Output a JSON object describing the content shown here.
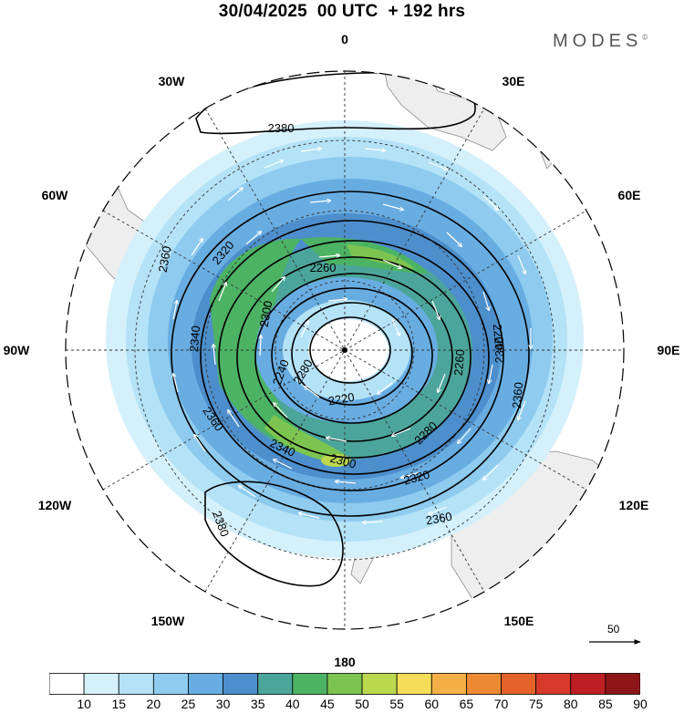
{
  "title": "30/04/2025  00 UTC  + 192 hrs",
  "brand": "MODES",
  "brand_mark": "©",
  "longitude_labels": [
    {
      "text": "0",
      "lon": 0
    },
    {
      "text": "30E",
      "lon": 30
    },
    {
      "text": "60E",
      "lon": 60
    },
    {
      "text": "90E",
      "lon": 90
    },
    {
      "text": "120E",
      "lon": 120
    },
    {
      "text": "150E",
      "lon": 150
    },
    {
      "text": "180",
      "lon": 180
    },
    {
      "text": "150W",
      "lon": -150
    },
    {
      "text": "120W",
      "lon": -120
    },
    {
      "text": "90W",
      "lon": -90
    },
    {
      "text": "60W",
      "lon": -60
    },
    {
      "text": "30W",
      "lon": -30
    }
  ],
  "contour_labels": [
    "2380",
    "2360",
    "2340",
    "2320",
    "2300",
    "2280",
    "2260",
    "2240",
    "2220",
    "2360",
    "2340",
    "2320",
    "2300",
    "2280",
    "2260",
    "2220",
    "2360",
    "2340",
    "2360",
    "2380"
  ],
  "reference_vector": {
    "label": "50",
    "icon": "arrow-right-icon"
  },
  "colorbar": {
    "labels": [
      "10",
      "15",
      "20",
      "25",
      "30",
      "35",
      "40",
      "45",
      "50",
      "55",
      "60",
      "65",
      "70",
      "75",
      "80",
      "85",
      "90"
    ],
    "colors": [
      "#ffffff",
      "#d4f0fb",
      "#b4e2f7",
      "#8ecbef",
      "#68ade2",
      "#4d8fcc",
      "#4ca59a",
      "#4cb364",
      "#7cc450",
      "#bcd84e",
      "#f4dd59",
      "#f2b046",
      "#ed8a32",
      "#e5632b",
      "#d73a2a",
      "#bd1f25",
      "#8e1618"
    ]
  }
}
